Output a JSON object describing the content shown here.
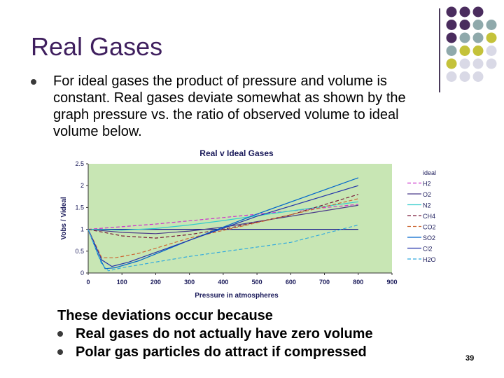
{
  "slide": {
    "title": "Real Gases",
    "bullet": "For ideal gases the product of pressure and volume is constant.  Real gases deviate somewhat as shown by the  graph pressure vs. the ratio of observed volume to ideal volume below.",
    "explanation_intro": "These deviations occur because",
    "explanation_items": [
      "Real gases do not actually have zero volume",
      "Polar gas particles do attract if compressed"
    ],
    "page_number": "39"
  },
  "decor": {
    "colors": {
      "purple": "#4a2c5e",
      "teal": "#8fa9ab",
      "olive": "#c4c23a",
      "lavender": "#d9d9e6"
    }
  },
  "chart_data": {
    "type": "line",
    "title": "Real v Ideal Gases",
    "xlabel": "Pressure in atmospheres",
    "ylabel": "Vobs / Videal",
    "xlim": [
      0,
      900
    ],
    "ylim": [
      0,
      2.5
    ],
    "x_ticks": [
      "0",
      "100",
      "200",
      "300",
      "400",
      "500",
      "600",
      "700",
      "800",
      "900"
    ],
    "y_ticks": [
      "0",
      "0.5",
      "1",
      "1.5",
      "2",
      "2.5"
    ],
    "grid": false,
    "legend_position": "right",
    "plot_background": "#c8e6b4",
    "series": [
      {
        "name": "ideal",
        "color": "#1a1a8c",
        "dash": "solid",
        "points": [
          [
            0,
            1
          ],
          [
            800,
            1
          ]
        ]
      },
      {
        "name": "H2",
        "color": "#cc33cc",
        "dash": "dash",
        "points": [
          [
            0,
            1
          ],
          [
            200,
            1.12
          ],
          [
            400,
            1.27
          ],
          [
            600,
            1.42
          ],
          [
            800,
            1.57
          ]
        ]
      },
      {
        "name": "O2",
        "color": "#4a3a8a",
        "dash": "solid",
        "points": [
          [
            0,
            1
          ],
          [
            100,
            0.93
          ],
          [
            200,
            0.9
          ],
          [
            300,
            0.96
          ],
          [
            400,
            1.05
          ],
          [
            600,
            1.3
          ],
          [
            800,
            1.55
          ]
        ]
      },
      {
        "name": "N2",
        "color": "#33cccc",
        "dash": "solid",
        "points": [
          [
            0,
            1
          ],
          [
            100,
            0.98
          ],
          [
            200,
            1.02
          ],
          [
            300,
            1.1
          ],
          [
            400,
            1.2
          ],
          [
            600,
            1.42
          ],
          [
            800,
            1.63
          ]
        ]
      },
      {
        "name": "CH4",
        "color": "#7a1a3a",
        "dash": "dash",
        "points": [
          [
            0,
            1
          ],
          [
            100,
            0.85
          ],
          [
            200,
            0.8
          ],
          [
            300,
            0.88
          ],
          [
            400,
            1.0
          ],
          [
            600,
            1.33
          ],
          [
            800,
            1.8
          ]
        ]
      },
      {
        "name": "CO2",
        "color": "#cc6633",
        "dash": "dash",
        "points": [
          [
            0,
            1
          ],
          [
            40,
            0.35
          ],
          [
            80,
            0.35
          ],
          [
            150,
            0.45
          ],
          [
            300,
            0.8
          ],
          [
            500,
            1.15
          ],
          [
            800,
            1.7
          ]
        ]
      },
      {
        "name": "SO2",
        "color": "#0066cc",
        "dash": "solid",
        "points": [
          [
            0,
            1
          ],
          [
            30,
            0.4
          ],
          [
            50,
            0.1
          ],
          [
            80,
            0.12
          ],
          [
            150,
            0.28
          ],
          [
            300,
            0.75
          ],
          [
            500,
            1.35
          ],
          [
            800,
            2.18
          ]
        ]
      },
      {
        "name": "Cl2",
        "color": "#2233aa",
        "dash": "solid",
        "points": [
          [
            0,
            1
          ],
          [
            40,
            0.3
          ],
          [
            70,
            0.15
          ],
          [
            120,
            0.25
          ],
          [
            300,
            0.75
          ],
          [
            500,
            1.3
          ],
          [
            800,
            2.0
          ]
        ]
      },
      {
        "name": "H2O",
        "color": "#33aadd",
        "dash": "dash",
        "points": [
          [
            0,
            1
          ],
          [
            40,
            0.2
          ],
          [
            60,
            0.05
          ],
          [
            100,
            0.12
          ],
          [
            300,
            0.38
          ],
          [
            600,
            0.7
          ],
          [
            800,
            1.1
          ]
        ]
      }
    ]
  }
}
